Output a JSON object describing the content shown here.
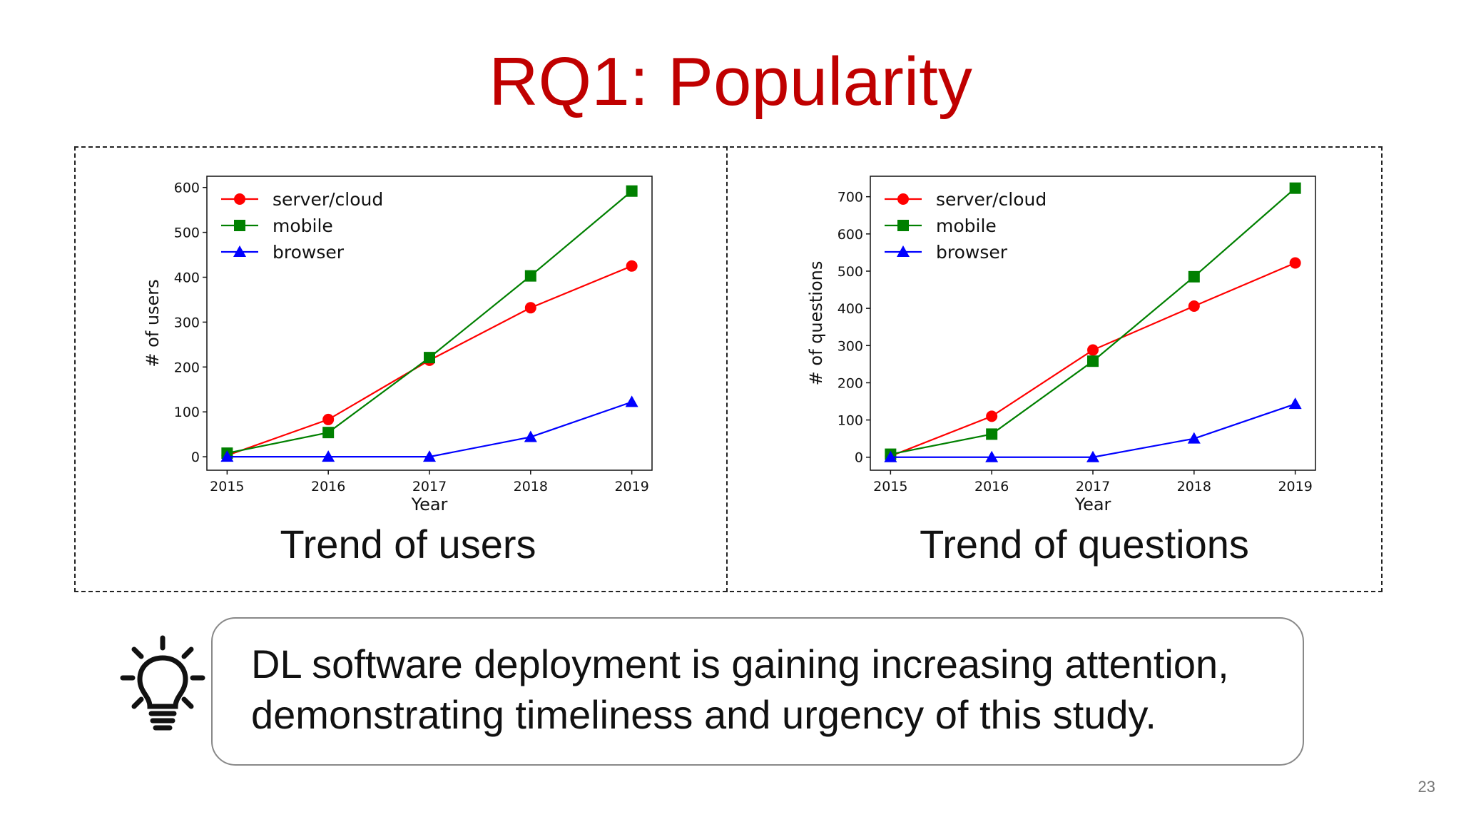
{
  "slide": {
    "title": "RQ1: Popularity",
    "page_number": "23",
    "takeaway_lines": [
      "DL software deployment is gaining increasing attention,",
      "demonstrating timeliness and urgency of this study."
    ],
    "icon": "lightbulb-icon"
  },
  "colors": {
    "title": "#c00000",
    "server_cloud": "#ff0000",
    "mobile": "#008000",
    "browser": "#0000ff"
  },
  "chart_data": [
    {
      "type": "line",
      "caption": "Trend of users",
      "xlabel": "Year",
      "ylabel": "# of users",
      "x": [
        2015,
        2016,
        2017,
        2018,
        2019
      ],
      "xticks": [
        "2015",
        "2016",
        "2017",
        "2018",
        "2019"
      ],
      "yticks": [
        0,
        100,
        200,
        300,
        400,
        500,
        600
      ],
      "ylim": [
        -30,
        625
      ],
      "legend_position": "top-left",
      "grid": false,
      "series": [
        {
          "name": "server/cloud",
          "marker": "circle",
          "color": "#ff0000",
          "values": [
            3,
            83,
            215,
            332,
            425
          ]
        },
        {
          "name": "mobile",
          "marker": "square",
          "color": "#008000",
          "values": [
            8,
            54,
            221,
            403,
            592
          ]
        },
        {
          "name": "browser",
          "marker": "triangle",
          "color": "#0000ff",
          "values": [
            0,
            0,
            0,
            44,
            122
          ]
        }
      ]
    },
    {
      "type": "line",
      "caption": "Trend of questions",
      "xlabel": "Year",
      "ylabel": "# of questions",
      "x": [
        2015,
        2016,
        2017,
        2018,
        2019
      ],
      "xticks": [
        "2015",
        "2016",
        "2017",
        "2018",
        "2019"
      ],
      "yticks": [
        0,
        100,
        200,
        300,
        400,
        500,
        600,
        700
      ],
      "ylim": [
        -35,
        755
      ],
      "legend_position": "top-left",
      "grid": false,
      "series": [
        {
          "name": "server/cloud",
          "marker": "circle",
          "color": "#ff0000",
          "values": [
            3,
            110,
            288,
            406,
            522
          ]
        },
        {
          "name": "mobile",
          "marker": "square",
          "color": "#008000",
          "values": [
            8,
            62,
            258,
            485,
            723
          ]
        },
        {
          "name": "browser",
          "marker": "triangle",
          "color": "#0000ff",
          "values": [
            0,
            0,
            0,
            50,
            143
          ]
        }
      ]
    }
  ]
}
